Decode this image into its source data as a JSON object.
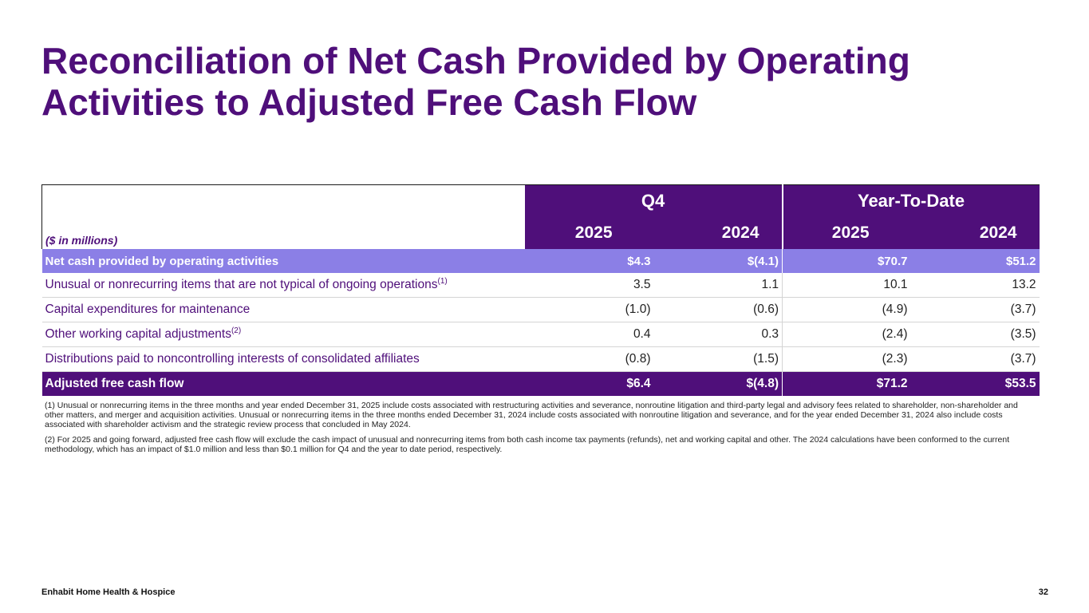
{
  "title": "Reconciliation of Net Cash Provided by Operating Activities to Adjusted Free Cash Flow",
  "table": {
    "unit_label": "($ in millions)",
    "groups": [
      "Q4",
      "Year-To-Date"
    ],
    "years": [
      "2025",
      "2024",
      "2025",
      "2024"
    ],
    "rows": [
      {
        "label": "Net cash provided by operating activities",
        "sup": "",
        "values": [
          "$4.3",
          "$(4.1)",
          "$70.7",
          "$51.2"
        ]
      },
      {
        "label": "Unusual or nonrecurring items that are not typical of ongoing operations",
        "sup": "(1)",
        "values": [
          "3.5",
          "1.1",
          "10.1",
          "13.2"
        ]
      },
      {
        "label": "Capital expenditures for maintenance",
        "sup": "",
        "values": [
          "(1.0)",
          "(0.6)",
          "(4.9)",
          "(3.7)"
        ]
      },
      {
        "label": "Other working capital adjustments",
        "sup": "(2)",
        "values": [
          "0.4",
          "0.3",
          "(2.4)",
          "(3.5)"
        ]
      },
      {
        "label": "Distributions paid to noncontrolling interests of consolidated affiliates",
        "sup": "",
        "values": [
          "(0.8)",
          "(1.5)",
          "(2.3)",
          "(3.7)"
        ]
      },
      {
        "label": "Adjusted free cash flow",
        "sup": "",
        "values": [
          "$6.4",
          "$(4.8)",
          "$71.2",
          "$53.5"
        ]
      }
    ]
  },
  "notes": [
    "(1) Unusual or nonrecurring items in the three months and year ended December 31, 2025 include costs associated with restructuring activities and severance, nonroutine litigation and third-party legal and advisory fees related to shareholder, non-shareholder and other matters, and merger and acquisition activities. Unusual or nonrecurring items in the three months ended December 31, 2024 include costs associated with nonroutine litigation and severance, and for the year ended December 31, 2024 also include costs associated with shareholder activism and the strategic review process that concluded in May 2024.",
    "(2) For 2025 and going forward, adjusted free cash flow will exclude the cash impact of unusual and nonrecurring items from both cash income tax payments (refunds), net and working capital and other. The 2024 calculations have been conformed to the current methodology, which has an impact of $1.0 million and less than $0.1 million for Q4 and the year to date period, respectively."
  ],
  "footer": {
    "company": "Enhabit Home Health & Hospice",
    "page_number": "32"
  },
  "colors": {
    "primary_purple": "#4f0f7a",
    "highlight_lavender": "#8b7fe6"
  }
}
